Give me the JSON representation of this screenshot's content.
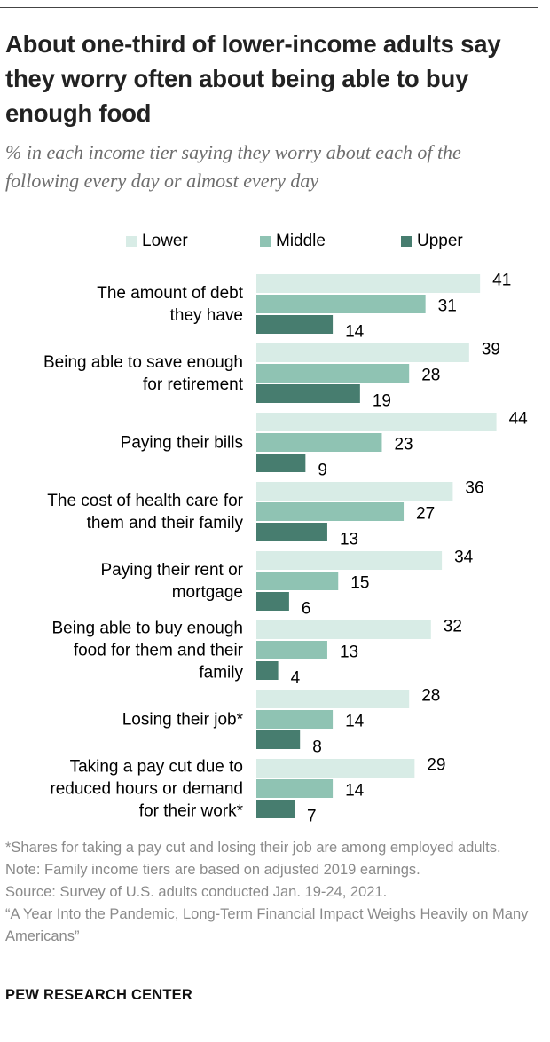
{
  "title": "About one-third of lower-income adults say they worry often about being able to buy enough food",
  "subtitle": "% in each income tier saying they worry about each of the following every day or almost every day",
  "notes": [
    "*Shares for taking a pay cut and losing their job are among employed adults.",
    "Note: Family income tiers are based on adjusted 2019 earnings.",
    "Source: Survey of U.S. adults conducted Jan. 19-24, 2021.",
    "“A Year Into the Pandemic, Long-Term Financial Impact Weighs Heavily on Many Americans”"
  ],
  "brand": "PEW RESEARCH CENTER",
  "colors": {
    "lower": "#d8ece6",
    "middle": "#8fc3b3",
    "upper": "#477d6f"
  },
  "chart_data": {
    "type": "bar",
    "orientation": "horizontal",
    "categories": [
      [
        "The amount of debt",
        "they have"
      ],
      [
        "Being able to save enough",
        "for retirement"
      ],
      [
        "Paying their bills"
      ],
      [
        "The cost of health care for",
        "them and their family"
      ],
      [
        "Paying their rent or",
        "mortgage"
      ],
      [
        "Being able to buy enough",
        "food for them and their",
        "family"
      ],
      [
        "Losing their job*"
      ],
      [
        "Taking a pay cut due to",
        "reduced hours or demand",
        "for their work*"
      ]
    ],
    "series": [
      {
        "name": "Lower",
        "values": [
          41,
          39,
          44,
          36,
          34,
          32,
          28,
          29
        ]
      },
      {
        "name": "Middle",
        "values": [
          31,
          28,
          23,
          27,
          15,
          13,
          14,
          14
        ]
      },
      {
        "name": "Upper",
        "values": [
          14,
          19,
          9,
          13,
          6,
          4,
          8,
          7
        ]
      }
    ],
    "legend_position": "top",
    "grid": false,
    "data_labels": true
  }
}
